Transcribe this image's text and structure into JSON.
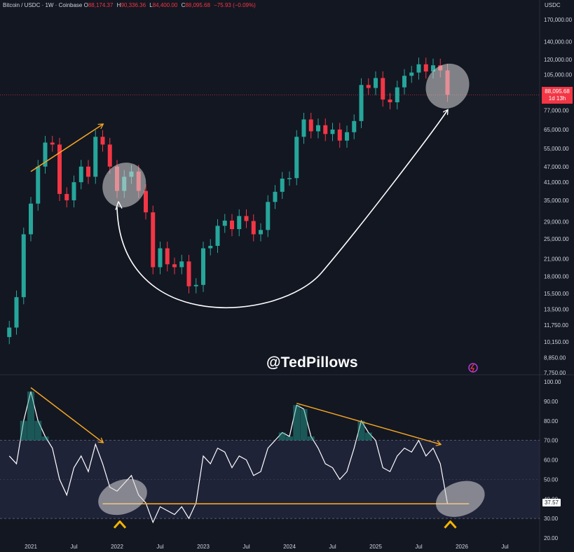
{
  "header": {
    "symbol": "Bitcoin / USDC · 1W · Coinbase",
    "open_label": "O",
    "open": "88,174.37",
    "high_label": "H",
    "high": "90,336.36",
    "low_label": "L",
    "low": "84,400.00",
    "close_label": "C",
    "close": "88,095.68",
    "change": "−75.93 (−0.09%)"
  },
  "axis_currency": "USDC",
  "watermark": "@TedPillows",
  "price_tag": {
    "price": "88,095.68",
    "countdown": "1d 13h"
  },
  "rsi_tag": "37.57",
  "colors": {
    "up": "#26a69a",
    "down": "#f23645",
    "annotation": "#f5a623",
    "rsi_line": "#ffffff",
    "rsi_band": "#2a2e4a"
  },
  "chart_data": [
    {
      "type": "candlestick",
      "title": "",
      "y_scale": "log",
      "ylim": [
        7750,
        170000
      ],
      "y_ticks": [
        170000,
        140000,
        120000,
        105000,
        77000,
        65000,
        55000,
        47000,
        41000,
        35000,
        29000,
        25000,
        21000,
        18000,
        15500,
        13500,
        11750,
        10150,
        8850,
        7750
      ],
      "y_tick_labels": [
        "170,000.00",
        "140,000.00",
        "120,000.00",
        "105,000.00",
        "77,000.00",
        "65,000.00",
        "55,000.00",
        "47,000.00",
        "41,000.00",
        "35,000.00",
        "29,000.00",
        "25,000.00",
        "21,000.00",
        "18,000.00",
        "15,500.00",
        "13,500.00",
        "11,750.00",
        "10,150.00",
        "8,850.00",
        "7,750.00"
      ],
      "x_ticks": [
        "2021",
        "Jul",
        "2022",
        "Jul",
        "2023",
        "Jul",
        "2024",
        "Jul",
        "2025",
        "Jul",
        "2026",
        "Jul"
      ],
      "x_tick_dates": [
        "2021-01",
        "2021-07",
        "2022-01",
        "2022-07",
        "2023-01",
        "2023-07",
        "2024-01",
        "2024-07",
        "2025-01",
        "2025-07",
        "2026-01",
        "2026-07"
      ],
      "series": [
        {
          "x": [
            "2020-10",
            "2020-11",
            "2020-12",
            "2021-01",
            "2021-02",
            "2021-03",
            "2021-04",
            "2021-05",
            "2021-06",
            "2021-07",
            "2021-08",
            "2021-09",
            "2021-10",
            "2021-11",
            "2021-12",
            "2022-01",
            "2022-02",
            "2022-03",
            "2022-04",
            "2022-05",
            "2022-06",
            "2022-07",
            "2022-08",
            "2022-09",
            "2022-10",
            "2022-11",
            "2022-12",
            "2023-01",
            "2023-02",
            "2023-03",
            "2023-04",
            "2023-05",
            "2023-06",
            "2023-07",
            "2023-08",
            "2023-09",
            "2023-10",
            "2023-11",
            "2023-12",
            "2024-01",
            "2024-02",
            "2024-03",
            "2024-04",
            "2024-05",
            "2024-06",
            "2024-07",
            "2024-08",
            "2024-09",
            "2024-10",
            "2024-11",
            "2024-12",
            "2025-01",
            "2025-02",
            "2025-03",
            "2025-04",
            "2025-05",
            "2025-06",
            "2025-07",
            "2025-08",
            "2025-09",
            "2025-10",
            "2025-11"
          ],
          "close": [
            11500,
            15000,
            26000,
            34000,
            47000,
            58000,
            57000,
            37000,
            35000,
            41000,
            47000,
            43000,
            61000,
            57000,
            47000,
            38000,
            43000,
            45000,
            38000,
            31500,
            19500,
            23000,
            20000,
            19500,
            20500,
            16500,
            16700,
            23000,
            23500,
            28000,
            29300,
            27200,
            30500,
            29200,
            26000,
            27000,
            34500,
            37700,
            42300,
            42500,
            61000,
            71000,
            64000,
            67500,
            62500,
            65000,
            59000,
            63500,
            70000,
            96000,
            93500,
            102000,
            84500,
            82500,
            94000,
            104000,
            107000,
            115000,
            108000,
            114000,
            109000,
            88095
          ]
        }
      ],
      "annotations": [
        {
          "type": "arrow",
          "from": [
            "2021-01",
            45000
          ],
          "to": [
            "2021-11",
            68000
          ]
        },
        {
          "type": "highlight",
          "at": [
            "2022-02",
            40000
          ]
        },
        {
          "type": "highlight",
          "at": [
            "2025-11",
            95000
          ]
        },
        {
          "type": "curved-arrow",
          "from": [
            "2022-01",
            33000
          ],
          "via": [
            "2022-12",
            15500
          ],
          "to": [
            "2025-11",
            77000
          ]
        }
      ]
    },
    {
      "type": "line",
      "title": "",
      "ylim": [
        20,
        100
      ],
      "y_ticks": [
        100,
        90,
        80,
        70,
        60,
        50,
        40,
        30,
        20
      ],
      "y_tick_labels": [
        "100.00",
        "90.00",
        "80.00",
        "70.00",
        "60.00",
        "50.00",
        "40.00",
        "30.00",
        "20.00"
      ],
      "band": [
        30,
        70
      ],
      "series": [
        {
          "x": [
            "2020-10",
            "2020-11",
            "2020-12",
            "2021-01",
            "2021-02",
            "2021-03",
            "2021-04",
            "2021-05",
            "2021-06",
            "2021-07",
            "2021-08",
            "2021-09",
            "2021-10",
            "2021-11",
            "2021-12",
            "2022-01",
            "2022-02",
            "2022-03",
            "2022-04",
            "2022-05",
            "2022-06",
            "2022-07",
            "2022-08",
            "2022-09",
            "2022-10",
            "2022-11",
            "2022-12",
            "2023-01",
            "2023-02",
            "2023-03",
            "2023-04",
            "2023-05",
            "2023-06",
            "2023-07",
            "2023-08",
            "2023-09",
            "2023-10",
            "2023-11",
            "2023-12",
            "2024-01",
            "2024-02",
            "2024-03",
            "2024-04",
            "2024-05",
            "2024-06",
            "2024-07",
            "2024-08",
            "2024-09",
            "2024-10",
            "2024-11",
            "2024-12",
            "2025-01",
            "2025-02",
            "2025-03",
            "2025-04",
            "2025-05",
            "2025-06",
            "2025-07",
            "2025-08",
            "2025-09",
            "2025-10",
            "2025-11"
          ],
          "values": [
            62,
            58,
            80,
            95,
            80,
            72,
            66,
            50,
            42,
            56,
            62,
            54,
            68,
            58,
            46,
            44,
            48,
            52,
            42,
            38,
            28,
            36,
            34,
            32,
            36,
            30,
            38,
            62,
            58,
            66,
            64,
            56,
            62,
            60,
            52,
            54,
            66,
            70,
            74,
            72,
            88,
            86,
            72,
            66,
            58,
            56,
            50,
            54,
            66,
            80,
            74,
            70,
            56,
            54,
            62,
            66,
            64,
            70,
            62,
            66,
            58,
            37.57
          ]
        }
      ],
      "annotations": [
        {
          "type": "arrow",
          "from": [
            "2021-01",
            97
          ],
          "to": [
            "2021-11",
            69
          ]
        },
        {
          "type": "arrow",
          "from": [
            "2024-02",
            89
          ],
          "to": [
            "2025-10",
            68
          ]
        },
        {
          "type": "hline",
          "value": 37.5
        },
        {
          "type": "highlight",
          "at": [
            "2022-01",
            41
          ]
        },
        {
          "type": "highlight",
          "at": [
            "2025-12",
            40
          ]
        },
        {
          "type": "marker",
          "shape": "caret-up",
          "at": "2022-01"
        },
        {
          "type": "marker",
          "shape": "caret-up",
          "at": "2025-11"
        }
      ]
    }
  ]
}
